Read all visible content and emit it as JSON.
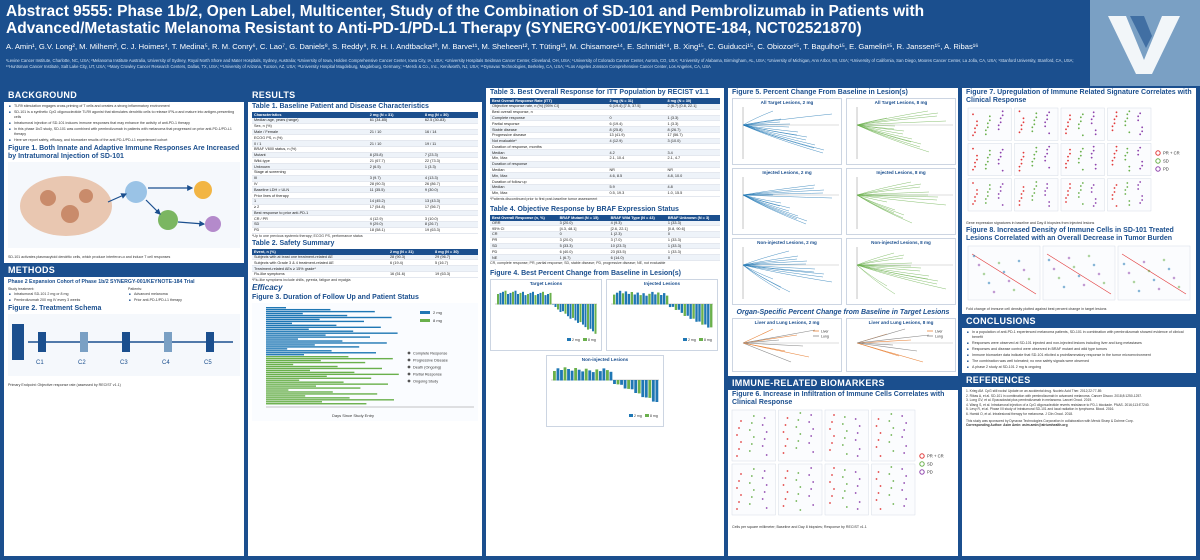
{
  "header": {
    "title": "Abstract 9555: Phase 1b/2, Open Label, Multicenter, Study of the Combination of SD-101 and Pembrolizumab in Patients with Advanced/Metastatic Melanoma Resistant to Anti-PD-1/PD-L1 Therapy (SYNERGY-001/KEYNOTE-184, NCT02521870)",
    "authors": "A. Amin¹, G.V. Long², M. Milhem³, C. J. Hoimes⁴, T. Medina⁵, R. M. Conry⁶, C. Lao⁷, G. Daniels⁸, S. Reddy⁹, R. H. I. Andtbacka¹⁰, M. Barve¹¹, M. Sheheen¹², T. Tüting¹³, M. Chisamore¹⁴, E. Schmidt¹⁴, B. Xing¹⁵, C. Guiducci¹⁵, C. Obiozor¹⁵, T. Bagulho¹⁵, E. Gamelin¹⁵, R. Janssen¹⁵, A. Ribas¹⁶",
    "affiliations": "¹Levine Cancer Institute, Charlotte, NC, USA; ²Melanoma Institute Australia, University of Sydney, Royal North Shore and Mater Hospitals, Sydney, Australia; ³University of Iowa, Holden Comprehensive Cancer Center, Iowa City, IA, USA; ⁴University Hospitals Seidman Cancer Center, Cleveland, OH, USA; ⁵University of Colorado Cancer Center, Aurora, CO, USA; ⁶University of Alabama, Birmingham, AL, USA; ⁷University of Michigan, Ann Arbor, MI, USA; ⁸University of California, San Diego, Moores Cancer Center, La Jolla, CA, USA; ⁹Stanford University, Stanford, CA, USA; ¹⁰Huntsman Cancer Institute, Salt Lake City, UT, USA; ¹¹Mary Crowley Cancer Research Centers, Dallas, TX, USA; ¹²University of Arizona, Tucson, AZ, USA; ¹³University Hospital Magdeburg, Magdeburg, Germany; ¹⁴Merck & Co., Inc., Kenilworth, NJ, USA; ¹⁵Dynavax Technologies, Berkeley, CA, USA; ¹⁶Los Angeles Jonsson Comprehensive Cancer Center, Los Angeles, CA, USA"
  },
  "background": {
    "heading": "BACKGROUND",
    "bullets": [
      "TLR9 stimulation engages cross-priming of T cells and creates a strong inflammatory environment",
      "SD-101 is a synthetic CpG oligonucleotide TLR9 agonist that stimulates dendritic cells to release IFN-α and mature into antigen-presenting cells",
      "Intratumoral injection of SD-101 induces immune responses that may enhance the activity of anti-PD-1 therapy",
      "In this phase 1b/2 study, SD-101 was combined with pembrolizumab in patients with melanoma that progressed on prior anti-PD-1/PD-L1 therapy",
      "Here we report safety, efficacy, and biomarker results of the anti-PD-1/PD-L1 experienced cohort"
    ],
    "fig1_title": "Figure 1. Both Innate and Adaptive Immune Responses Are Increased by Intratumoral Injection of SD-101",
    "fig1_caption": "SD-101 activates plasmacytoid dendritic cells, which produce interferon-α and induce T cell responses"
  },
  "methods": {
    "heading": "METHODS",
    "subheading": "Phase 2 Expansion Cohort of Phase 1b/2 SYNERGY-001/KEYNOTE-184 Trial",
    "col_a": [
      "Study treatment:",
      "Intratumoral SD-101 2 mg or 8 mg",
      "Pembrolizumab 200 mg IV every 3 weeks"
    ],
    "col_b": [
      "Patients:",
      "Advanced melanoma",
      "Prior anti-PD-1/PD-L1 therapy"
    ],
    "fig2_title": "Figure 2. Treatment Schema",
    "cycle_labels": [
      "C1",
      "C2",
      "C3",
      "C4",
      "C5"
    ],
    "schema_note": "Primary Endpoint: Objective response rate (assessed by RECIST v1.1)"
  },
  "results": {
    "heading": "RESULTS",
    "table1": {
      "title": "Table 1. Baseline Patient and Disease Characteristics",
      "headers": [
        "Characteristics",
        "2 mg (N = 31)",
        "8 mg (N = 30)"
      ],
      "rows": [
        [
          "Median age, years (range)",
          "61 (34-85)",
          "62.5 (30-83)"
        ],
        [
          "Sex, n (%)",
          "",
          ""
        ],
        [
          "  Male / Female",
          "21 / 10",
          "16 / 14"
        ],
        [
          "ECOG PS, n (%)",
          "",
          ""
        ],
        [
          "  0 / 1",
          "21 / 10",
          "19 / 11"
        ],
        [
          "BRAF V600 status, n (%)",
          "",
          ""
        ],
        [
          "  Mutant",
          "8 (25.8)",
          "7 (23.3)"
        ],
        [
          "  Wild-type",
          "21 (67.7)",
          "22 (73.3)"
        ],
        [
          "  Unknown",
          "2 (6.5)",
          "1 (3.3)"
        ],
        [
          "Stage at screening",
          "",
          ""
        ],
        [
          "  III",
          "3 (9.7)",
          "4 (13.3)"
        ],
        [
          "  IV",
          "28 (90.3)",
          "26 (86.7)"
        ],
        [
          "Baseline LDH > ULN",
          "11 (35.5)",
          "9 (30.0)"
        ],
        [
          "Prior lines of therapy",
          "",
          ""
        ],
        [
          "  1",
          "14 (45.2)",
          "13 (43.3)"
        ],
        [
          "  ≥ 2",
          "17 (54.8)",
          "17 (56.7)"
        ],
        [
          "Best response to prior anti-PD-1",
          "",
          ""
        ],
        [
          "  CR / PR",
          "4 (12.9)",
          "3 (10.0)"
        ],
        [
          "  SD",
          "9 (29.0)",
          "8 (26.7)"
        ],
        [
          "  PD",
          "18 (58.1)",
          "19 (63.3)"
        ]
      ],
      "note": "*Up to one previous systemic therapy; ECOG PS, performance status"
    },
    "table2": {
      "title": "Table 2. Safety Summary",
      "headers": [
        "Event, n (%)",
        "2 mg (N = 31)",
        "8 mg (N = 30)"
      ],
      "rows": [
        [
          "Subjects with at least one treatment-related AE",
          "28 (90.3)",
          "29 (96.7)"
        ],
        [
          "Subjects with Grade 3 & 4 treatment-related AE",
          "6 (19.4)",
          "5 (16.7)"
        ],
        [
          "Treatment-related AEs ≥ 15% grade*",
          "",
          ""
        ],
        [
          "  Flu-like symptoms",
          "16 (51.6)",
          "19 (63.3)"
        ]
      ],
      "note": "*Flu-like symptoms include chills, pyrexia, fatigue and myalgia"
    },
    "efficacy_heading": "Efficacy",
    "fig3": {
      "title": "Figure 3. Duration of Follow Up and Patient Status",
      "legend": [
        "Complete Response",
        "Progressive Disease",
        "Death (Ongoing)",
        "Partial Response",
        "Ongoing Study"
      ],
      "xlabel": "Days Since Study Entry",
      "dose_labels": [
        "2 mg",
        "8 mg"
      ]
    }
  },
  "table3": {
    "title": "Table 3. Best Overall Response for ITT Population by RECIST v1.1",
    "headers": [
      "Best Overall Response Rate (ITT)",
      "2 mg (N = 31)",
      "8 mg (N = 30)"
    ],
    "rows": [
      [
        "Objective response rate, n (%) [95% CI]",
        "6 (19.4) [7.5, 37.5]",
        "2 (6.7) [0.8, 22.1]"
      ],
      [
        "Best overall response, n",
        "",
        ""
      ],
      [
        "  Complete response",
        "0",
        "1 (3.3)"
      ],
      [
        "  Partial response",
        "6 (19.4)",
        "1 (3.3)"
      ],
      [
        "  Stable disease",
        "8 (25.8)",
        "8 (26.7)"
      ],
      [
        "  Progressive disease",
        "13 (41.9)",
        "17 (56.7)"
      ],
      [
        "  Not evaluable*",
        "4 (12.9)",
        "3 (10.0)"
      ],
      [
        "Duration of response, months",
        "",
        ""
      ],
      [
        "  Median",
        "4.2",
        "3.4"
      ],
      [
        "  Min, Max",
        "2.1, 10.4",
        "2.1, 4.7"
      ],
      [
        "Duration of response",
        "",
        ""
      ],
      [
        "  Median",
        "NR",
        "NR"
      ],
      [
        "  Min, Max",
        "4.6, 8.5",
        "4.8, 10.0"
      ],
      [
        "Duration of follow up",
        "",
        ""
      ],
      [
        "  Median",
        "5.9",
        "4.8"
      ],
      [
        "  Min, Max",
        "0.5, 19.3",
        "1.0, 15.5"
      ]
    ],
    "note": "*Patients discontinued prior to first post-baseline tumor assessment"
  },
  "table4": {
    "title": "Table 4. Objective Response by BRAF Expression Status",
    "headers": [
      "Best Overall Response (n, %)",
      "BRAF Mutant (N = 15)",
      "BRAF Wild Type (N = 43)",
      "BRAF Unknown (N = 3)"
    ],
    "rows": [
      [
        "ORR",
        "3 (20.0)",
        "4 (9.3)",
        "1 (33.3)"
      ],
      [
        "95% CI",
        "[4.3, 48.1]",
        "[2.6, 22.1]",
        "[0.8, 90.6]"
      ],
      [
        "CR",
        "0",
        "1 (2.3)",
        "0"
      ],
      [
        "PR",
        "3 (20.0)",
        "3 (7.0)",
        "1 (33.3)"
      ],
      [
        "SD",
        "5 (33.3)",
        "10 (23.3)",
        "1 (33.3)"
      ],
      [
        "PD",
        "6 (40.0)",
        "23 (53.5)",
        "1 (33.3)"
      ],
      [
        "NE",
        "1 (6.7)",
        "6 (14.0)",
        "0"
      ]
    ],
    "note": "CR, complete response; PR, partial response; SD, stable disease; PD, progressive disease; NE, not evaluable"
  },
  "fig4": {
    "title": "Figure 4. Best Percent Change from Baseline in Lesion(s)",
    "panels": [
      "Target Lesions",
      "Injected Lesions",
      "Non-injected Lesions"
    ],
    "legend": [
      "2 mg",
      "8 mg"
    ]
  },
  "fig5": {
    "title": "Figure 5. Percent Change From Baseline in Lesion(s)",
    "panels": [
      "All Target Lesions, 2 mg",
      "All Target Lesions, 8 mg",
      "Injected Lesions, 2 mg",
      "Injected Lesions, 8 mg",
      "Non-injected Lesions, 2 mg",
      "Non-injected Lesions, 8 mg"
    ],
    "subtitle": "Organ-Specific Percent Change from Baseline in Target Lesions",
    "organ_panels": [
      "Liver and Lung Lesions, 2 mg",
      "Liver and Lung Lesions, 8 mg"
    ],
    "organ_legend": [
      "Liver",
      "Lung"
    ],
    "ylabel": "Percent Change from Baseline",
    "xlabel": "Days"
  },
  "biomarkers": {
    "heading": "IMMUNE-RELATED BIOMARKERS",
    "fig6_title": "Figure 6. Increase in Infiltration of Immune Cells Correlates with Clinical Response",
    "legend": [
      "PR + CR",
      "SD",
      "PD"
    ],
    "caption": "Cells per square millimeter; Baseline and Day 8 biopsies; Response by RECIST v1.1"
  },
  "fig7": {
    "title": "Figure 7. Upregulation of Immune Related Signature Correlates with Clinical Response",
    "legend": [
      "PR + CR",
      "SD",
      "PD"
    ],
    "caption": "Gene expression signatures in baseline and Day 8 biopsies from injected lesions"
  },
  "fig8": {
    "title": "Figure 8. Increased Density of Immune Cells in SD-101 Treated Lesions Correlated with an Overall Decrease in Tumor Burden",
    "caption": "Fold change of immune cell density plotted against best percent change in target lesions"
  },
  "conclusions": {
    "heading": "CONCLUSIONS",
    "bullets": [
      "In a population of anti-PD-1 experienced melanoma patients, SD-101 in combination with pembrolizumab showed evidence of clinical benefit",
      "Responses were observed at SD-101 injected and non-injected lesions including liver and lung metastases",
      "Responses and disease control were observed in BRAF mutant and wild type tumors",
      "Immune biomarker data indicate that SD-101 elicited a proinflammatory response in the tumor microenvironment",
      "The combination was well tolerated; no new safety signals were observed",
      "A phase 2 study at SD-101 2 mg is ongoing"
    ]
  },
  "references": {
    "heading": "REFERENCES",
    "items": [
      "1. Krieg AM. CpG still rocks! Update on an accidental drug. Nucleic Acid Ther. 2012;22:77-89.",
      "2. Ribas A, et al. SD-101 in combination with pembrolizumab in advanced melanoma. Cancer Discov. 2018;8:1250-1257.",
      "3. Long GV, et al. Epacadostat plus pembrolizumab in melanoma. Lancet Oncol. 2019.",
      "4. Wang S, et al. Intratumoral injection of a CpG oligonucleotide reverts resistance to PD-1 blockade. PNAS. 2016;113:E7240.",
      "5. Levy R, et al. Phase I/II study of intratumoral SD-101 and local radiation in lymphoma. Blood. 2016.",
      "6. Hamid O, et al. Intralesional therapy for melanoma. J Clin Oncol. 2018."
    ],
    "disclosure": "This study was sponsored by Dynavax Technologies Corporation in collaboration with Merck Sharp & Dohme Corp.",
    "contact": "Corresponding Author: Asim Amin: asim.amin@atriumhealth.org"
  },
  "colors": {
    "brand": "#1b4f8e",
    "blue": "#1f77b4",
    "green": "#6ab04c",
    "orange": "#e8843a",
    "red": "#e23b3b",
    "purple": "#8e44ad"
  }
}
